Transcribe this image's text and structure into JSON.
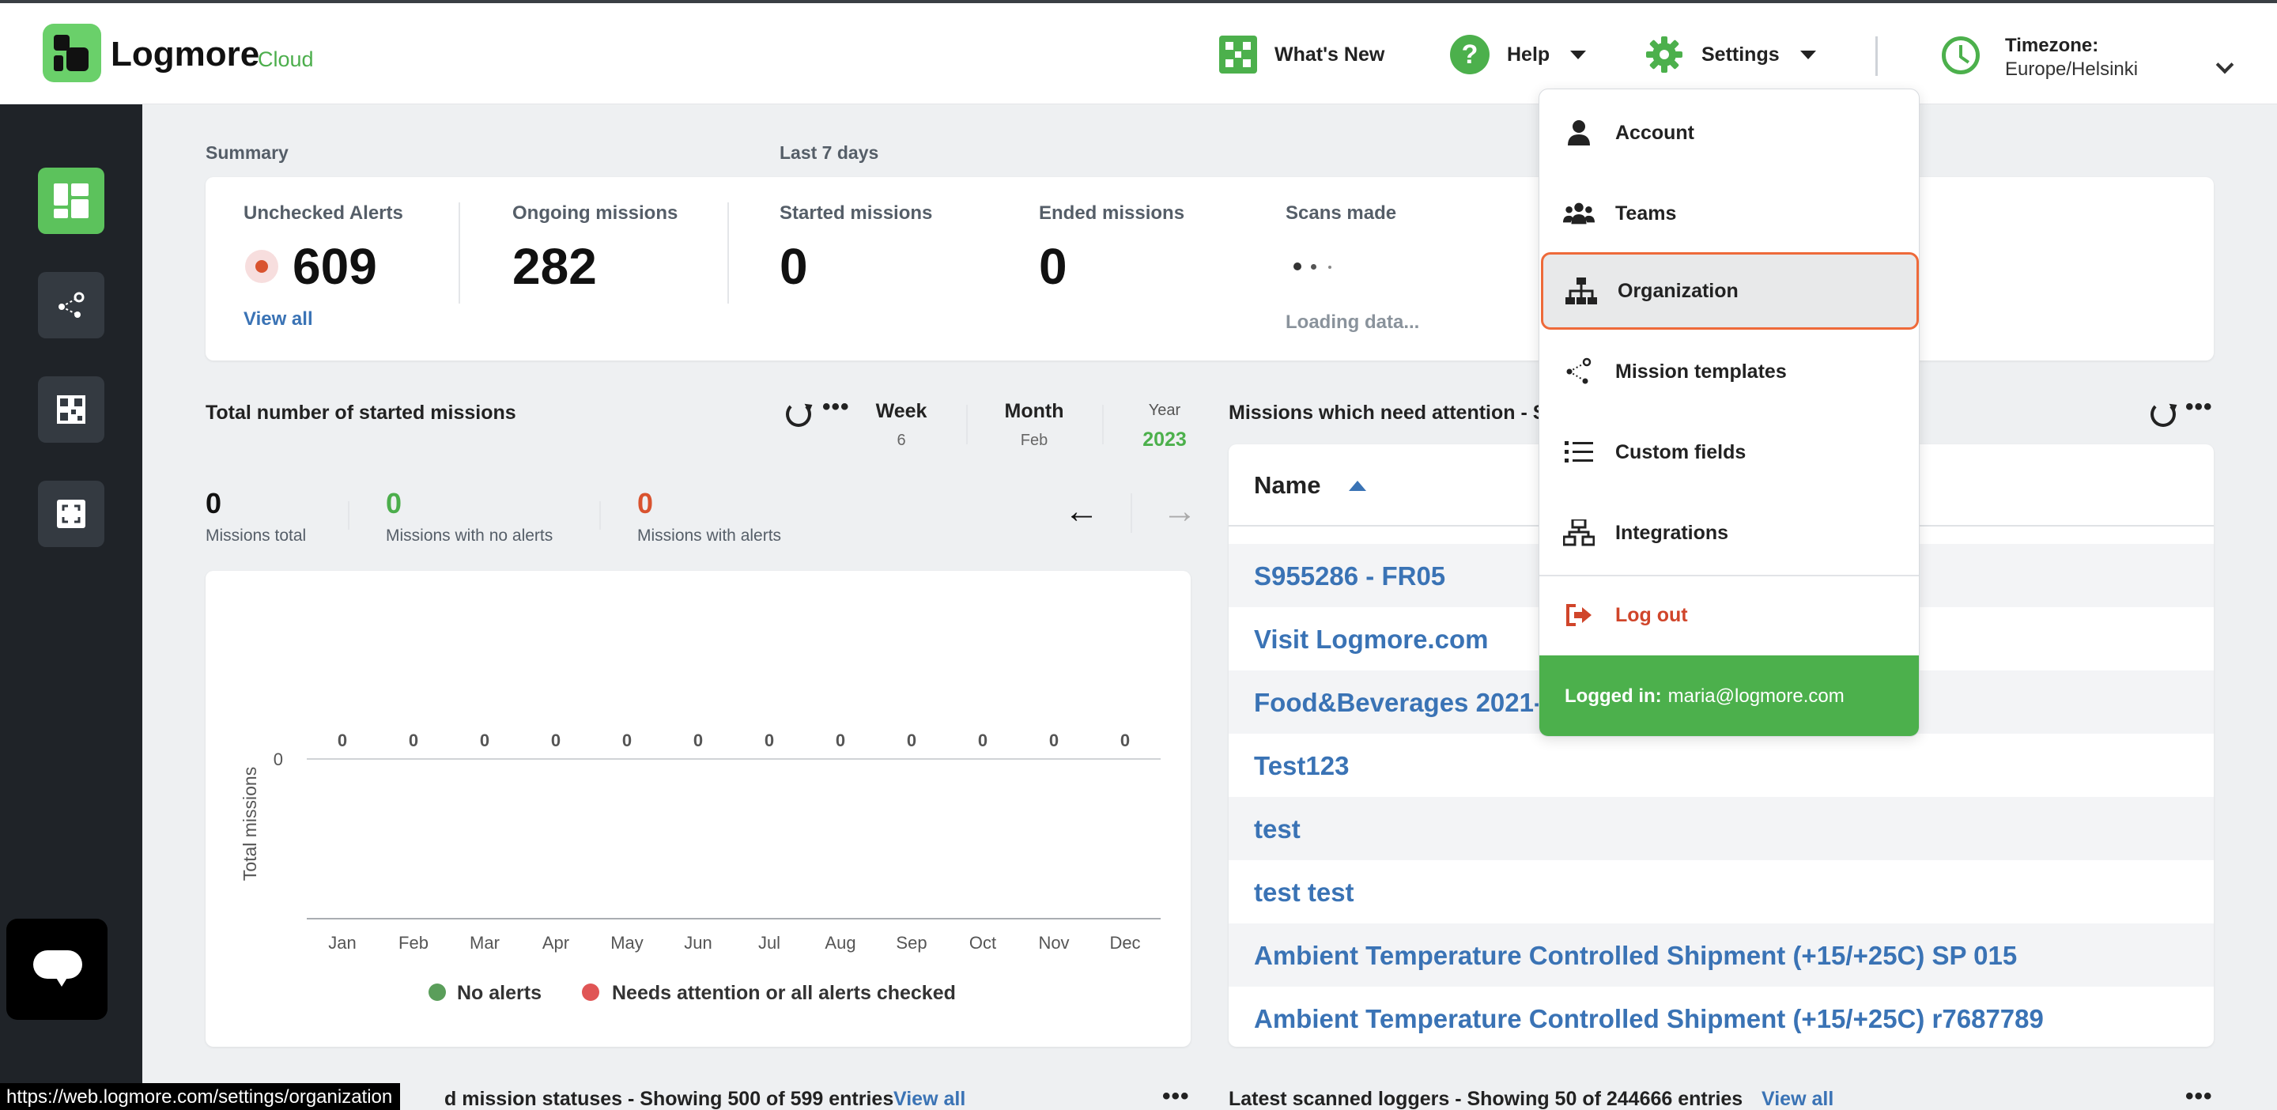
{
  "header": {
    "logo_text": "Logmore",
    "logo_sub": "Cloud",
    "whats_new": "What's New",
    "help": "Help",
    "settings": "Settings",
    "help_glyph": "?",
    "timezone_label": "Timezone:",
    "timezone_value": "Europe/Helsinki"
  },
  "summary": {
    "title": "Summary",
    "period": "Last 7 days",
    "unchecked_alerts_label": "Unchecked Alerts",
    "unchecked_alerts_value": "609",
    "view_all": "View all",
    "ongoing_label": "Ongoing missions",
    "ongoing_value": "282",
    "started_label": "Started missions",
    "started_value": "0",
    "ended_label": "Ended missions",
    "ended_value": "0",
    "scans_label": "Scans made",
    "scans_loading": "Loading data..."
  },
  "started_panel": {
    "title": "Total number of started missions",
    "tabs": [
      {
        "label": "Week",
        "sub": "6"
      },
      {
        "label": "Month",
        "sub": "Feb"
      },
      {
        "label": "Year",
        "sub": "2023"
      }
    ],
    "missions_total_value": "0",
    "missions_total_label": "Missions total",
    "no_alerts_value": "0",
    "no_alerts_label": "Missions with no alerts",
    "with_alerts_value": "0",
    "with_alerts_label": "Missions with alerts",
    "legend_no_alerts": "No alerts",
    "legend_needs_attention": "Needs attention or all alerts checked"
  },
  "chart_data": {
    "type": "bar",
    "categories": [
      "Jan",
      "Feb",
      "Mar",
      "Apr",
      "May",
      "Jun",
      "Jul",
      "Aug",
      "Sep",
      "Oct",
      "Nov",
      "Dec"
    ],
    "series": [
      {
        "name": "No alerts",
        "values": [
          0,
          0,
          0,
          0,
          0,
          0,
          0,
          0,
          0,
          0,
          0,
          0
        ]
      },
      {
        "name": "Needs attention or all alerts checked",
        "values": [
          0,
          0,
          0,
          0,
          0,
          0,
          0,
          0,
          0,
          0,
          0,
          0
        ]
      }
    ],
    "data_labels": [
      "0",
      "0",
      "0",
      "0",
      "0",
      "0",
      "0",
      "0",
      "0",
      "0",
      "0",
      "0"
    ],
    "ylabel": "Total missions",
    "yticks": [
      "0"
    ],
    "legend_position": "bottom",
    "colors": [
      "#5a9e5a",
      "#e05555"
    ]
  },
  "attention_panel": {
    "title": "Missions which need attention - S",
    "name_header": "Name",
    "rows": [
      "S955286 - FR05",
      "Visit Logmore.com",
      "Food&Beverages 2021-",
      "Test123",
      "test",
      "test test",
      "Ambient Temperature Controlled Shipment (+15/+25C) SP 015",
      "Ambient Temperature Controlled Shipment (+15/+25C) r7687789"
    ]
  },
  "settings_menu": {
    "items": [
      "Account",
      "Teams",
      "Organization",
      "Mission templates",
      "Custom fields",
      "Integrations"
    ],
    "logout": "Log out",
    "logged_in_label": "Logged in:",
    "logged_in_user": "maria@logmore.com"
  },
  "bottom": {
    "status_url": "https://web.logmore.com/settings/organization",
    "left_title": "d mission statuses - Showing 500 of 599 entries",
    "left_view_all": "View all",
    "right_title": "Latest scanned loggers - Showing 50 of 244666 entries",
    "right_view_all": "View all"
  },
  "colors": {
    "brand_green": "#4cb04c",
    "link_blue": "#3a73b5",
    "alert_red": "#d9532f",
    "highlight_orange": "#ee6a3a",
    "sidebar_bg": "#1f2328"
  }
}
